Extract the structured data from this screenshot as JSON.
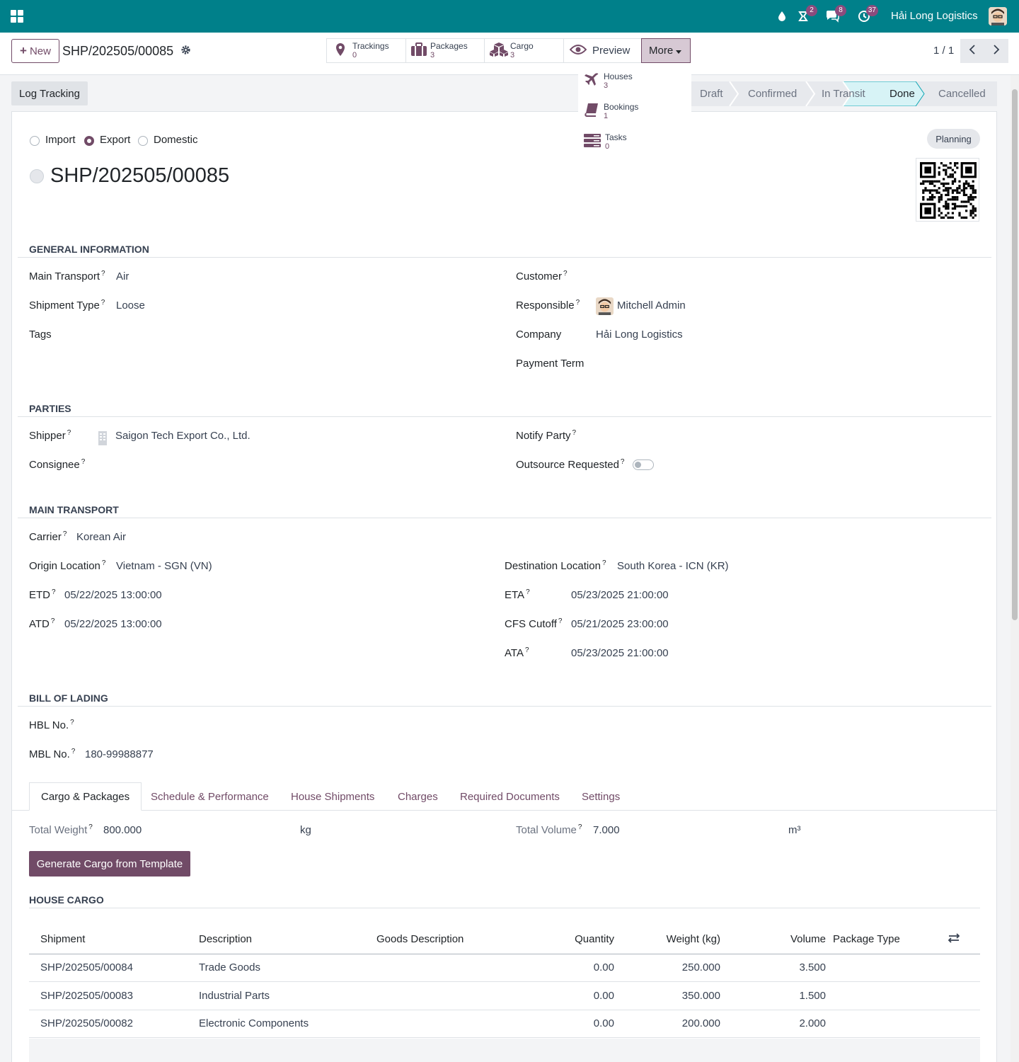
{
  "topbar": {
    "company": "Hải Long Logistics",
    "badges": {
      "activity": "2",
      "messages": "8",
      "clock": "37"
    }
  },
  "control_panel": {
    "new_label": "New",
    "record_title": "SHP/202505/00085",
    "stat_buttons": [
      {
        "label": "Trackings",
        "value": "0"
      },
      {
        "label": "Packages",
        "value": "3"
      },
      {
        "label": "Cargo",
        "value": "3"
      }
    ],
    "preview_label": "Preview",
    "more_label": "More",
    "pager": "1 / 1"
  },
  "more_dropdown": [
    {
      "label": "Houses",
      "value": "3"
    },
    {
      "label": "Bookings",
      "value": "1"
    },
    {
      "label": "Tasks",
      "value": "0"
    }
  ],
  "statusbar": {
    "log_button": "Log Tracking",
    "stages": [
      "Draft",
      "Confirmed",
      "In Transit",
      "Done",
      "Cancelled"
    ],
    "active_stage": "Done"
  },
  "form": {
    "direction_options": [
      "Import",
      "Export",
      "Domestic"
    ],
    "direction_selected": "Export",
    "title": "SHP/202505/00085",
    "state_badge": "Planning",
    "general": {
      "section": "General Information",
      "main_transport_label": "Main Transport",
      "main_transport": "Air",
      "shipment_type_label": "Shipment Type",
      "shipment_type": "Loose",
      "tags_label": "Tags",
      "customer_label": "Customer",
      "responsible_label": "Responsible",
      "responsible": "Mitchell Admin",
      "company_label": "Company",
      "company": "Hải Long Logistics",
      "payment_term_label": "Payment Term"
    },
    "parties": {
      "section": "Parties",
      "shipper_label": "Shipper",
      "shipper": "Saigon Tech Export Co., Ltd.",
      "consignee_label": "Consignee",
      "notify_label": "Notify Party",
      "outsource_label": "Outsource Requested",
      "outsource_value": false
    },
    "transport": {
      "section": "Main Transport",
      "carrier_label": "Carrier",
      "carrier": "Korean Air",
      "origin_label": "Origin Location",
      "origin": "Vietnam - SGN (VN)",
      "destination_label": "Destination Location",
      "destination": "South Korea - ICN (KR)",
      "etd_label": "ETD",
      "etd": "05/22/2025 13:00:00",
      "atd_label": "ATD",
      "atd": "05/22/2025 13:00:00",
      "eta_label": "ETA",
      "eta": "05/23/2025 21:00:00",
      "cfs_label": "CFS Cutoff",
      "cfs": "05/21/2025 23:00:00",
      "ata_label": "ATA",
      "ata": "05/23/2025 21:00:00"
    },
    "bl": {
      "section": "Bill of Lading",
      "hbl_label": "HBL No.",
      "mbl_label": "MBL No.",
      "mbl": "180-99988877"
    },
    "tabs": [
      "Cargo & Packages",
      "Schedule & Performance",
      "House Shipments",
      "Charges",
      "Required Documents",
      "Settings"
    ],
    "cargo_tab": {
      "total_weight_label": "Total Weight",
      "total_weight": "800.000",
      "weight_unit": "kg",
      "total_volume_label": "Total Volume",
      "total_volume": "7.000",
      "volume_unit": "m³",
      "generate_button": "Generate Cargo from Template",
      "house_cargo_section": "House Cargo",
      "columns": [
        "Shipment",
        "Description",
        "Goods Description",
        "Quantity",
        "Weight (kg)",
        "Volume",
        "Package Type"
      ],
      "rows": [
        {
          "shipment": "SHP/202505/00084",
          "description": "Trade Goods",
          "goods": "",
          "quantity": "0.00",
          "weight": "250.000",
          "volume": "3.500",
          "package": ""
        },
        {
          "shipment": "SHP/202505/00083",
          "description": "Industrial Parts",
          "goods": "",
          "quantity": "0.00",
          "weight": "350.000",
          "volume": "1.500",
          "package": ""
        },
        {
          "shipment": "SHP/202505/00082",
          "description": "Electronic Components",
          "goods": "",
          "quantity": "0.00",
          "weight": "200.000",
          "volume": "2.000",
          "package": ""
        }
      ]
    }
  },
  "colors": {
    "topbar": "#00808a",
    "accent": "#714b67",
    "done_stage": "#d7f3f6"
  }
}
